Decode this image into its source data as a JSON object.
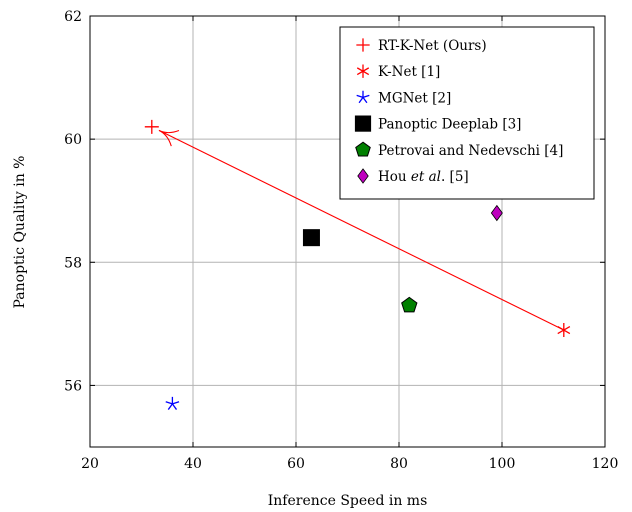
{
  "chart_data": {
    "type": "scatter",
    "title": "",
    "xlabel": "Inference Speed in ms",
    "ylabel": "Panoptic Quality in %",
    "xlim": [
      20,
      120
    ],
    "ylim": [
      55,
      62
    ],
    "xticks": [
      "20",
      "40",
      "60",
      "80",
      "100",
      "120"
    ],
    "yticks": [
      "56",
      "58",
      "60",
      "62"
    ],
    "grid": true,
    "legend_position": "top-right",
    "series": [
      {
        "name": "RT-K-Net (Ours)",
        "x": 32,
        "y": 60.2,
        "marker": "plus",
        "color": "#ff0000"
      },
      {
        "name": "K-Net [1]",
        "x": 112,
        "y": 56.9,
        "marker": "asterisk",
        "color": "#ff0000"
      },
      {
        "name": "MGNet [2]",
        "x": 36,
        "y": 55.7,
        "marker": "star",
        "color": "#0000ff"
      },
      {
        "name": "Panoptic Deeplab [3]",
        "x": 63,
        "y": 58.4,
        "marker": "square",
        "color": "#000000"
      },
      {
        "name": "Petrovai and Nedevschi [4]",
        "x": 82,
        "y": 57.3,
        "marker": "pentagon",
        "color": "#008000"
      },
      {
        "name": "Hou et al. [5]",
        "x": 99,
        "y": 58.8,
        "marker": "diamond",
        "color": "#bf00bf"
      }
    ],
    "annotations": [
      {
        "type": "arrow",
        "from": [
          112,
          56.9
        ],
        "to": [
          32,
          60.2
        ],
        "color": "#ff0000"
      }
    ]
  }
}
